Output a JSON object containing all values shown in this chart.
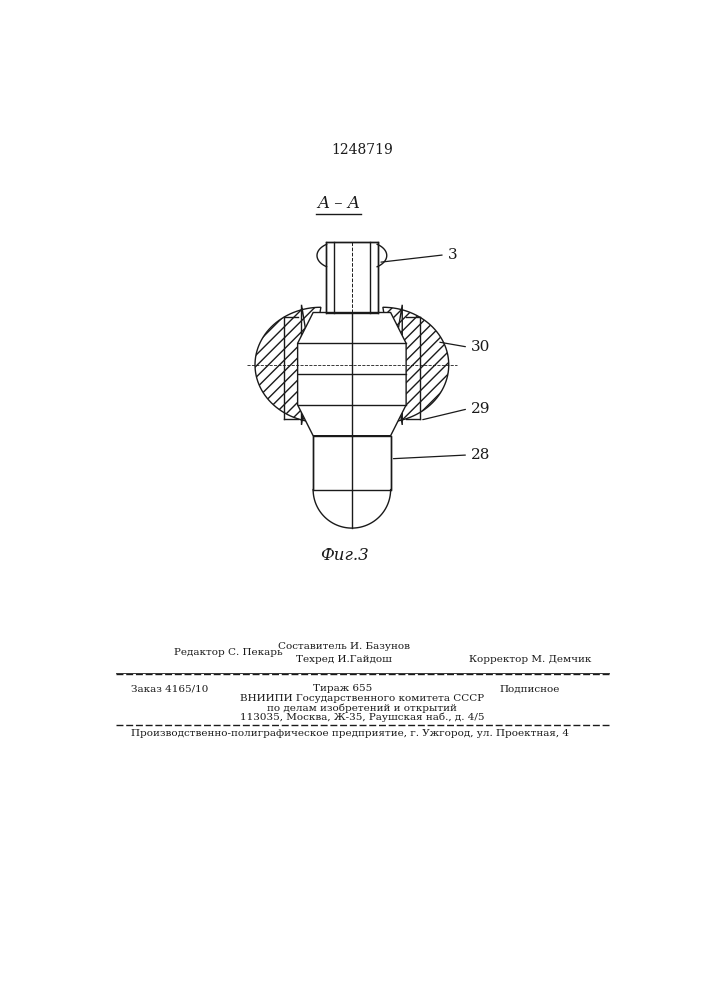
{
  "patent_number": "1248719",
  "title_label": "A – A",
  "fig_label": "Фиг.3",
  "part_labels": [
    "3",
    "30",
    "29",
    "28"
  ],
  "footer_line1_left": "Редактор С. Пекарь",
  "footer_line1_center_top": "Составитель И. Базунов",
  "footer_line1_center_bot": "Техред И.Гайдош",
  "footer_line1_right": "Корректор М. Демчик",
  "footer_zak": "Заказ 4165/10",
  "footer_tir": "Тираж 655",
  "footer_pod": "Подписное",
  "footer_line3": "ВНИИПИ Государственного комитета СССР",
  "footer_line4": "по делам изобретений и открытий",
  "footer_line5": "113035, Москва, Ж-35, Раушская наб., д. 4/5",
  "footer_line6": "Производственно-полиграфическое предприятие, г. Ужгород, ул. Проектная, 4",
  "bg_color": "#ffffff",
  "line_color": "#1a1a1a"
}
